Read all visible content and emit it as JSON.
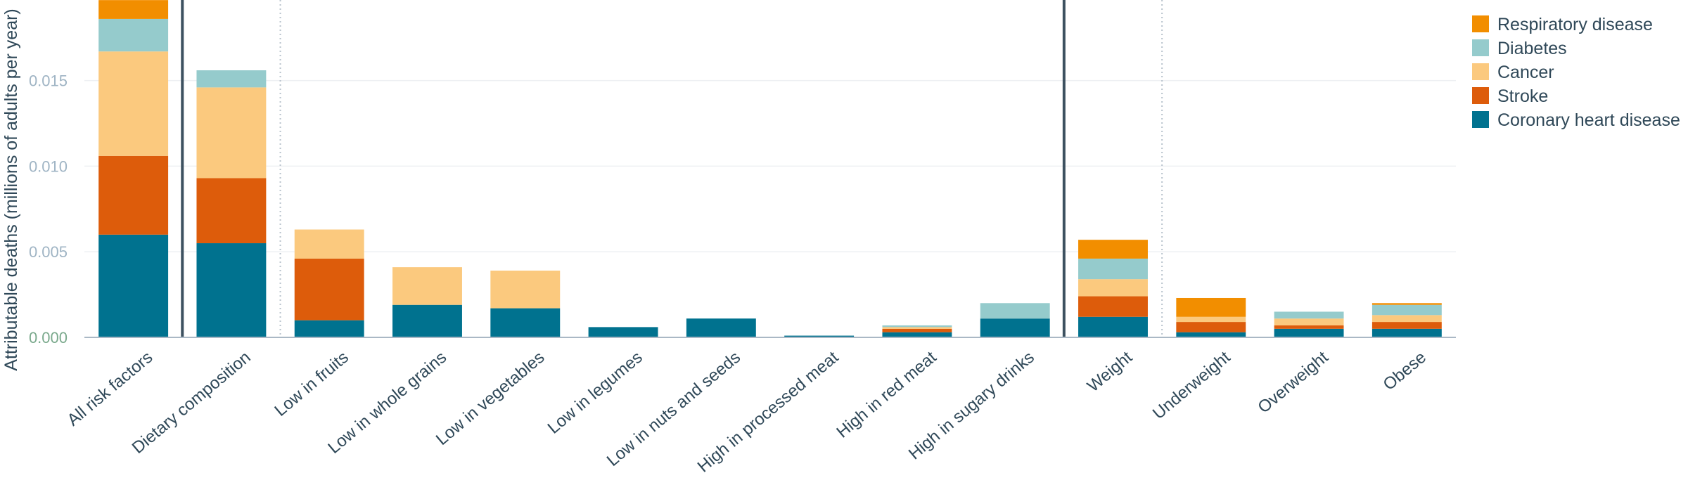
{
  "chart_data": {
    "type": "bar",
    "stacked": true,
    "ylabel": "Attributable deaths (millions of adults per year)",
    "ylim": [
      0,
      0.0195
    ],
    "yticks": [
      0.0,
      0.005,
      0.01,
      0.015
    ],
    "ytick_labels": [
      "0.000",
      "0.005",
      "0.010",
      "0.015"
    ],
    "grid": true,
    "legend_position": "top-right",
    "categories": [
      "All risk factors",
      "Dietary composition",
      "Low in fruits",
      "Low in whole grains",
      "Low in vegetables",
      "Low in legumes",
      "Low in nuts and seeds",
      "High in processed meat",
      "High in red meat",
      "High in sugary drinks",
      "Weight",
      "Underweight",
      "Overweight",
      "Obese"
    ],
    "series": [
      {
        "name": "Coronary heart disease",
        "color": "#00728f",
        "values": [
          0.006,
          0.0055,
          0.001,
          0.0019,
          0.0017,
          0.0006,
          0.0011,
          0.0001,
          0.0003,
          0.0011,
          0.0012,
          0.0003,
          0.0005,
          0.0005
        ]
      },
      {
        "name": "Stroke",
        "color": "#dd5c0b",
        "values": [
          0.0046,
          0.0038,
          0.0036,
          0.0,
          0.0,
          0.0,
          0.0,
          0.0,
          0.0002,
          0.0,
          0.0012,
          0.0006,
          0.0002,
          0.0004
        ]
      },
      {
        "name": "Cancer",
        "color": "#fbc97e",
        "values": [
          0.0061,
          0.0053,
          0.0017,
          0.0022,
          0.0022,
          0.0,
          0.0,
          0.0,
          0.0001,
          0.0,
          0.001,
          0.0003,
          0.0004,
          0.0004
        ]
      },
      {
        "name": "Diabetes",
        "color": "#95cbcc",
        "values": [
          0.0019,
          0.001,
          0.0,
          0.0,
          0.0,
          0.0,
          0.0,
          0.0,
          0.0001,
          0.0009,
          0.0012,
          0.0,
          0.0004,
          0.0006
        ]
      },
      {
        "name": "Respiratory disease",
        "color": "#f28e00",
        "values": [
          0.0011,
          0.0,
          0.0,
          0.0,
          0.0,
          0.0,
          0.0,
          0.0,
          0.0,
          0.0,
          0.0011,
          0.0011,
          0.0,
          0.0001
        ]
      }
    ],
    "legend_order": [
      "Respiratory disease",
      "Diabetes",
      "Cancer",
      "Stroke",
      "Coronary heart disease"
    ],
    "solid_separators_after": [
      0,
      9
    ],
    "dotted_separators_after": [
      1,
      10
    ]
  },
  "colors": {
    "axis_text": "#2f4858",
    "tick_zero": "#7aa98c",
    "tick": "#9fb4c4",
    "grid": "#eef0f3",
    "baseline": "#aab8c5",
    "solid_separator": "#3d5160",
    "dotted_separator": "#b9c3cd"
  }
}
